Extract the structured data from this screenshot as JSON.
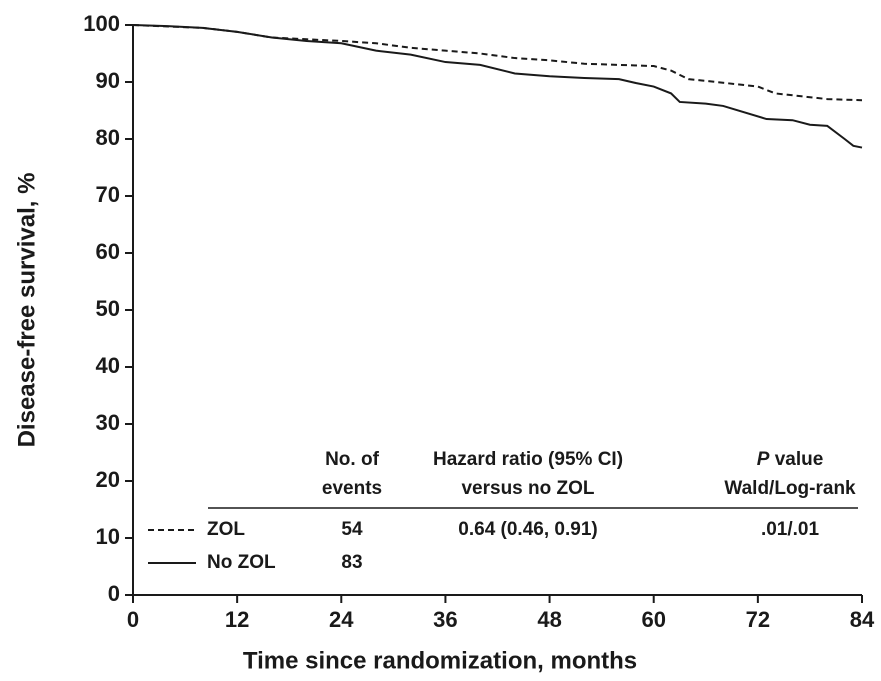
{
  "chart_data": {
    "type": "line",
    "x_label": "Time since randomization, months",
    "y_label": "Disease-free survival, %",
    "xlim": [
      0,
      84
    ],
    "xticks": [
      0,
      12,
      24,
      36,
      48,
      60,
      72,
      84
    ],
    "ylim": [
      0,
      100
    ],
    "yticks": [
      0,
      10,
      20,
      30,
      40,
      50,
      60,
      70,
      80,
      90,
      100
    ],
    "series": [
      {
        "name": "ZOL",
        "color": "#1a1a1a",
        "dash": true,
        "x": [
          0,
          3,
          8,
          12,
          16,
          20,
          24,
          28,
          32,
          36,
          40,
          44,
          48,
          52,
          56,
          60,
          62,
          64,
          66,
          72,
          74,
          80,
          84
        ],
        "values": [
          100,
          99.8,
          99.5,
          98.8,
          97.8,
          97.5,
          97.2,
          96.8,
          96,
          95.5,
          95,
          94.2,
          93.8,
          93.2,
          93,
          92.8,
          92,
          90.5,
          90.2,
          89.2,
          88,
          87,
          86.8
        ],
        "events": 54,
        "hazard_ratio": "0.64 (0.46, 0.91)",
        "p_value": ".01/.01"
      },
      {
        "name": "No ZOL",
        "color": "#1a1a1a",
        "dash": false,
        "x": [
          0,
          4,
          8,
          12,
          16,
          20,
          24,
          28,
          32,
          36,
          40,
          44,
          48,
          52,
          56,
          58,
          60,
          62,
          63,
          66,
          68,
          73,
          76,
          78,
          80,
          82,
          83,
          84
        ],
        "values": [
          100,
          99.8,
          99.5,
          98.8,
          97.8,
          97.2,
          96.8,
          95.5,
          94.8,
          93.5,
          93,
          91.5,
          91,
          90.7,
          90.5,
          89.8,
          89.2,
          88,
          86.5,
          86.2,
          85.8,
          83.5,
          83.3,
          82.5,
          82.3,
          80,
          78.8,
          78.5
        ],
        "events": 83
      }
    ],
    "table_header": {
      "events": [
        "No. of",
        "events"
      ],
      "hazard_ratio": [
        "Hazard ratio (95% CI)",
        "versus no ZOL"
      ],
      "p_value": {
        "italic": "P",
        "rest": "value",
        "line2": "Wald/Log-rank"
      }
    }
  }
}
